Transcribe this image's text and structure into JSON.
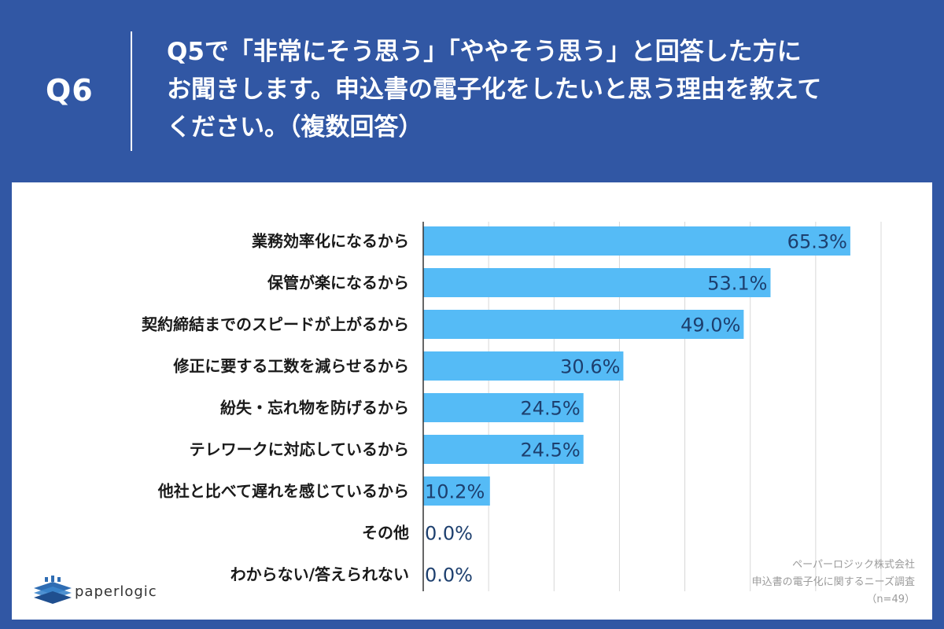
{
  "header": {
    "qnum": "Q6",
    "question_lines": [
      "Q5で「非常にそう思う」「ややそう思う」と回答した方に",
      "お聞きします。申込書の電子化をしたいと思う理由を教えて",
      "ください。（複数回答）"
    ]
  },
  "chart_data": {
    "type": "bar",
    "orientation": "horizontal",
    "categories": [
      "業務効率化になるから",
      "保管が楽になるから",
      "契約締結までのスピードが上がるから",
      "修正に要する工数を減らせるから",
      "紛失・忘れ物を防げるから",
      "テレワークに対応しているから",
      "他社と比べて遅れを感じているから",
      "その他",
      "わからない/答えられない"
    ],
    "values": [
      65.3,
      53.1,
      49.0,
      30.6,
      24.5,
      24.5,
      10.2,
      0.0,
      0.0
    ],
    "value_labels": [
      "65.3%",
      "53.1%",
      "49.0%",
      "30.6%",
      "24.5%",
      "24.5%",
      "10.2%",
      "0.0%",
      "0.0%"
    ],
    "xlim": [
      0,
      70
    ],
    "grid": true,
    "bar_color": "#55bbf6"
  },
  "logo": {
    "text": "paperlogic",
    "icon": "paperlogic-stack-icon"
  },
  "source": {
    "lines": [
      "ペーパーロジック株式会社",
      "申込書の電子化に関するニーズ調査",
      "（n=49）"
    ]
  }
}
